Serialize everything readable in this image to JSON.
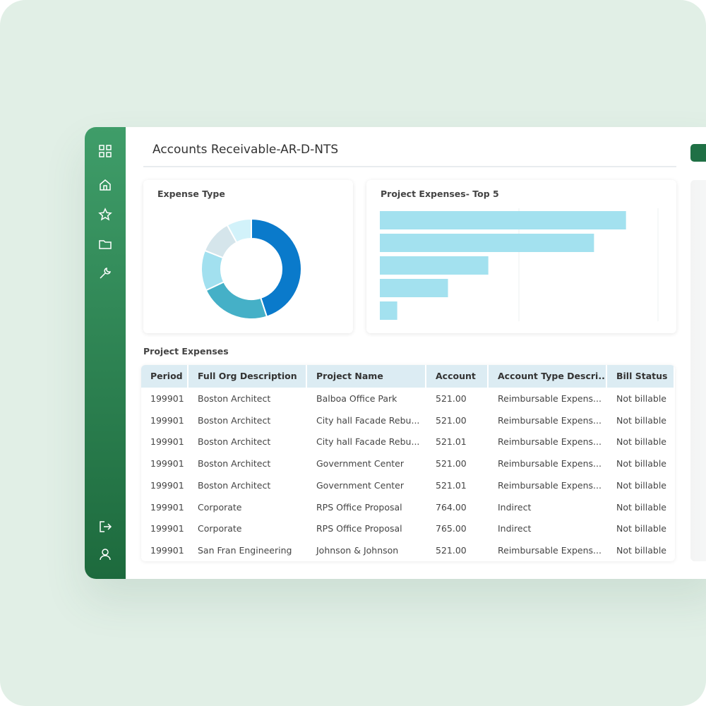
{
  "header": {
    "title": "Accounts Receivable-AR-D-NTS"
  },
  "donut": {
    "type": "pie",
    "title": "Expense Type",
    "values": [
      45,
      23,
      13,
      11,
      8
    ],
    "colors": [
      "#0a7acb",
      "#45b0c7",
      "#a2e0ef",
      "#d5e5eb",
      "#d2f2fa"
    ]
  },
  "bars": {
    "type": "bar",
    "title": "Project Expenses- Top 5",
    "values": [
      177,
      154,
      78,
      49,
      12.5
    ],
    "color": "#a3e1ef",
    "xlim": [
      0,
      200
    ],
    "xticks": [
      100,
      200
    ],
    "grid": true
  },
  "table": {
    "title": "Project Expenses",
    "columns": [
      "Period",
      "Full Org Description",
      "Project Name",
      "Account",
      "Account Type Descri...",
      "Bill Status"
    ],
    "rows": [
      [
        "199901",
        "Boston Architect",
        "Balboa Office Park",
        "521.00",
        "Reimbursable Expens...",
        "Not billable"
      ],
      [
        "199901",
        "Boston Architect",
        "City hall Facade Rebu...",
        "521.00",
        "Reimbursable Expens...",
        "Not billable"
      ],
      [
        "199901",
        "Boston Architect",
        "City hall Facade Rebu...",
        "521.01",
        "Reimbursable Expens...",
        "Not billable"
      ],
      [
        "199901",
        "Boston Architect",
        "Government Center",
        "521.00",
        "Reimbursable Expens...",
        "Not billable"
      ],
      [
        "199901",
        "Boston Architect",
        "Government Center",
        "521.01",
        "Reimbursable Expens...",
        "Not billable"
      ],
      [
        "199901",
        "Corporate",
        "RPS Office Proposal",
        "764.00",
        "Indirect",
        "Not billable"
      ],
      [
        "199901",
        "Corporate",
        "RPS Office Proposal",
        "765.00",
        "Indirect",
        "Not billable"
      ],
      [
        "199901",
        "San Fran Engineering",
        "Johnson & Johnson",
        "521.00",
        "Reimbursable Expens...",
        "Not billable"
      ]
    ]
  }
}
